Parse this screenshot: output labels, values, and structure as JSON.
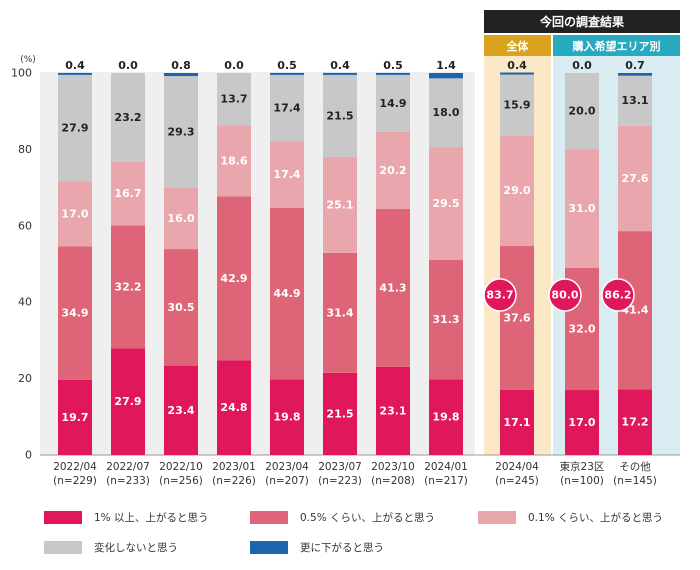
{
  "chart_data": {
    "type": "bar",
    "stacked": true,
    "unit_label": "(%)",
    "ylim": [
      0,
      100
    ],
    "yticks": [
      0,
      20,
      40,
      60,
      80,
      100
    ],
    "header": {
      "title": "今回の調査結果",
      "group_all": "全体",
      "group_area": "購入希望エリア別"
    },
    "categories": [
      {
        "label": "2022/04",
        "n": "(n=229)"
      },
      {
        "label": "2022/07",
        "n": "(n=233)"
      },
      {
        "label": "2022/10",
        "n": "(n=256)"
      },
      {
        "label": "2023/01",
        "n": "(n=226)"
      },
      {
        "label": "2023/04",
        "n": "(n=207)"
      },
      {
        "label": "2023/07",
        "n": "(n=223)"
      },
      {
        "label": "2023/10",
        "n": "(n=208)"
      },
      {
        "label": "2024/01",
        "n": "(n=217)"
      },
      {
        "label": "2024/04",
        "n": "(n=245)"
      },
      {
        "label": "東京23区",
        "n": "(n=100)"
      },
      {
        "label": "その他",
        "n": "(n=145)"
      }
    ],
    "series": [
      {
        "name": "1% 以上、上がると思う",
        "color": "#e0175a",
        "label_color": "#ffffff",
        "values": [
          19.7,
          27.9,
          23.4,
          24.8,
          19.8,
          21.5,
          23.1,
          19.8,
          17.1,
          17.0,
          17.2
        ]
      },
      {
        "name": "0.5% くらい、上がると思う",
        "color": "#de6577",
        "label_color": "#ffffff",
        "values": [
          34.9,
          32.2,
          30.5,
          42.9,
          44.9,
          31.4,
          41.3,
          31.3,
          37.6,
          32.0,
          41.4
        ]
      },
      {
        "name": "0.1% くらい、上がると思う",
        "color": "#e9a6ad",
        "label_color": "#ffffff",
        "values": [
          17.0,
          16.7,
          16.0,
          18.6,
          17.4,
          25.1,
          20.2,
          29.5,
          29.0,
          31.0,
          27.6
        ]
      },
      {
        "name": "変化しないと思う",
        "color": "#c8c8c8",
        "label_color": "#222222",
        "values": [
          27.9,
          23.2,
          29.3,
          13.7,
          17.4,
          21.5,
          14.9,
          18.0,
          15.9,
          20.0,
          13.1
        ]
      },
      {
        "name": "更に下がると思う",
        "color": "#1a64b0",
        "label_color": "#222222",
        "values": [
          0.4,
          0.0,
          0.8,
          0.0,
          0.5,
          0.4,
          0.5,
          1.4,
          0.4,
          0.0,
          0.7
        ]
      }
    ],
    "totals": [
      {
        "index": 8,
        "value": "83.7"
      },
      {
        "index": 9,
        "value": "80.0"
      },
      {
        "index": 10,
        "value": "86.2"
      }
    ]
  }
}
